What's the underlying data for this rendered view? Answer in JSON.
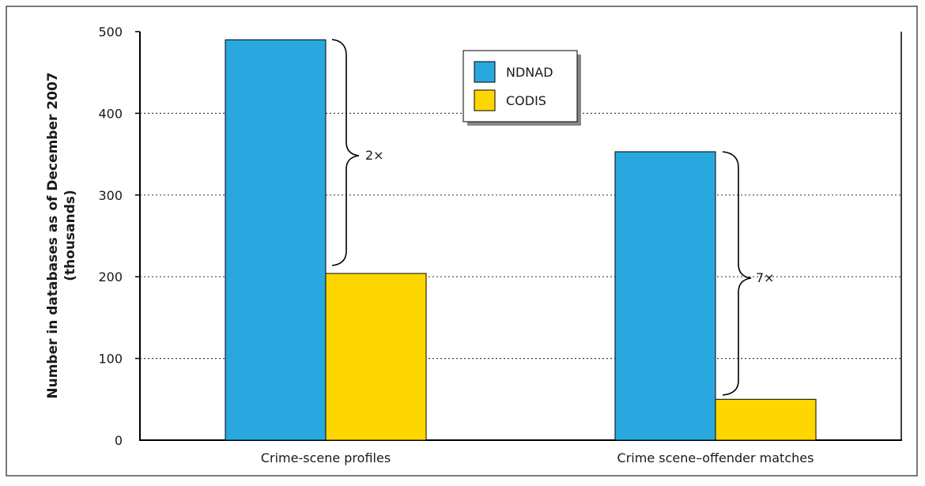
{
  "chart_data": {
    "type": "bar",
    "categories": [
      "Crime-scene profiles",
      "Crime scene–offender matches"
    ],
    "series": [
      {
        "name": "NDNAD",
        "color": "#29a8e0",
        "values": [
          490,
          353
        ]
      },
      {
        "name": "CODIS",
        "color": "#ffd700",
        "values": [
          204,
          50
        ]
      }
    ],
    "ylabel_line1": "Number in databases as of December 2007",
    "ylabel_line2": "(thousands)",
    "ylim": [
      0,
      500
    ],
    "yticks": [
      "0",
      "100",
      "200",
      "300",
      "400",
      "500"
    ],
    "grid": "horizontal dotted",
    "legend_position": "top-center",
    "annotations": [
      "2×",
      "7×"
    ]
  }
}
